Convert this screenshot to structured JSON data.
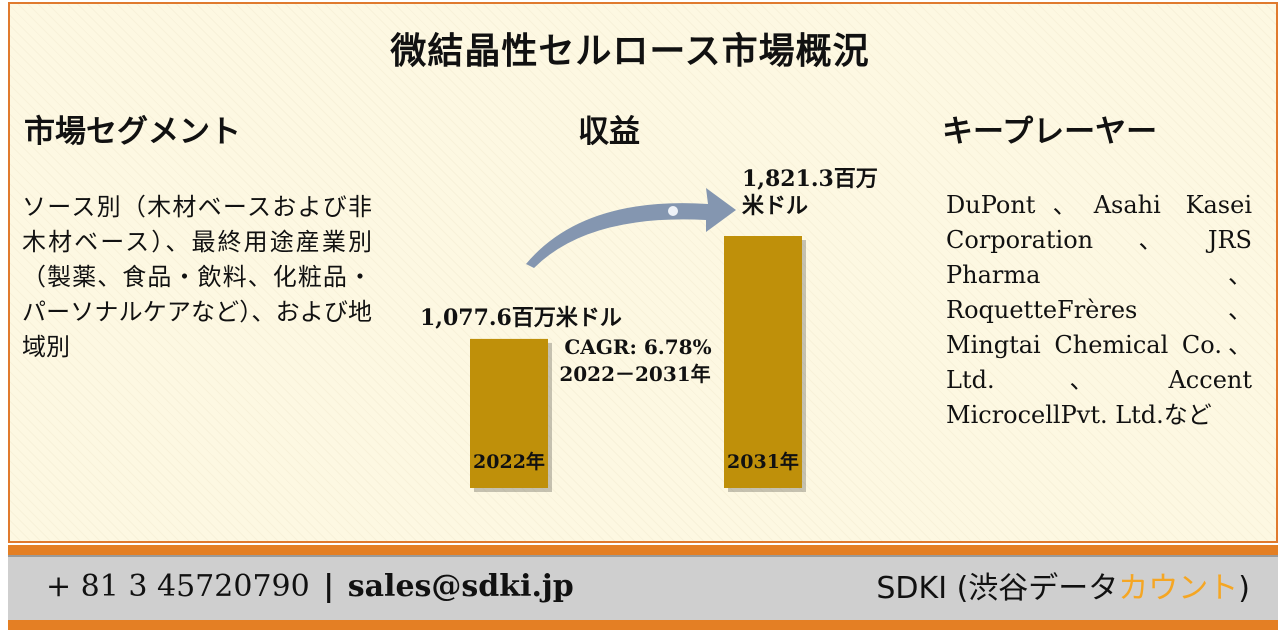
{
  "title": "微結晶性セルロース市場概況",
  "segments": {
    "heading": "市場セグメント",
    "text": "ソース別（木材ベースおよび非木材ベース）、最終用途産業別（製薬、食品・飲料、化粧品・パーソナルケアなど）、および地域別"
  },
  "revenue": {
    "heading": "収益"
  },
  "players": {
    "heading": "キープレーヤー",
    "text": "DuPont、Asahi Kasei Corporation、JRS Pharma、RoquetteFrères、Mingtai Chemical Co.、Ltd.、Accent MicrocellPvt. Ltd.など"
  },
  "chart_data": {
    "type": "bar",
    "categories": [
      "2022年",
      "2031年"
    ],
    "values": [
      1077.6,
      1821.3
    ],
    "value_labels": [
      "1,077.6百万米ドル",
      "1,821.3百万米ドル"
    ],
    "cagr_label": "CAGR: 6.78%",
    "period_label": "2022－2031年",
    "bar_color": "#bf900a",
    "arrow_color": "#8496b0"
  },
  "footer": {
    "phone": "+ 81 3 45720790",
    "separator": "|",
    "email": "sales@sdki.jp",
    "brand_prefix": "SDKI (渋谷データ",
    "brand_highlight": "カウント",
    "brand_suffix": ")",
    "highlight_color": "#f5a623",
    "accent_color": "#e47f24"
  }
}
